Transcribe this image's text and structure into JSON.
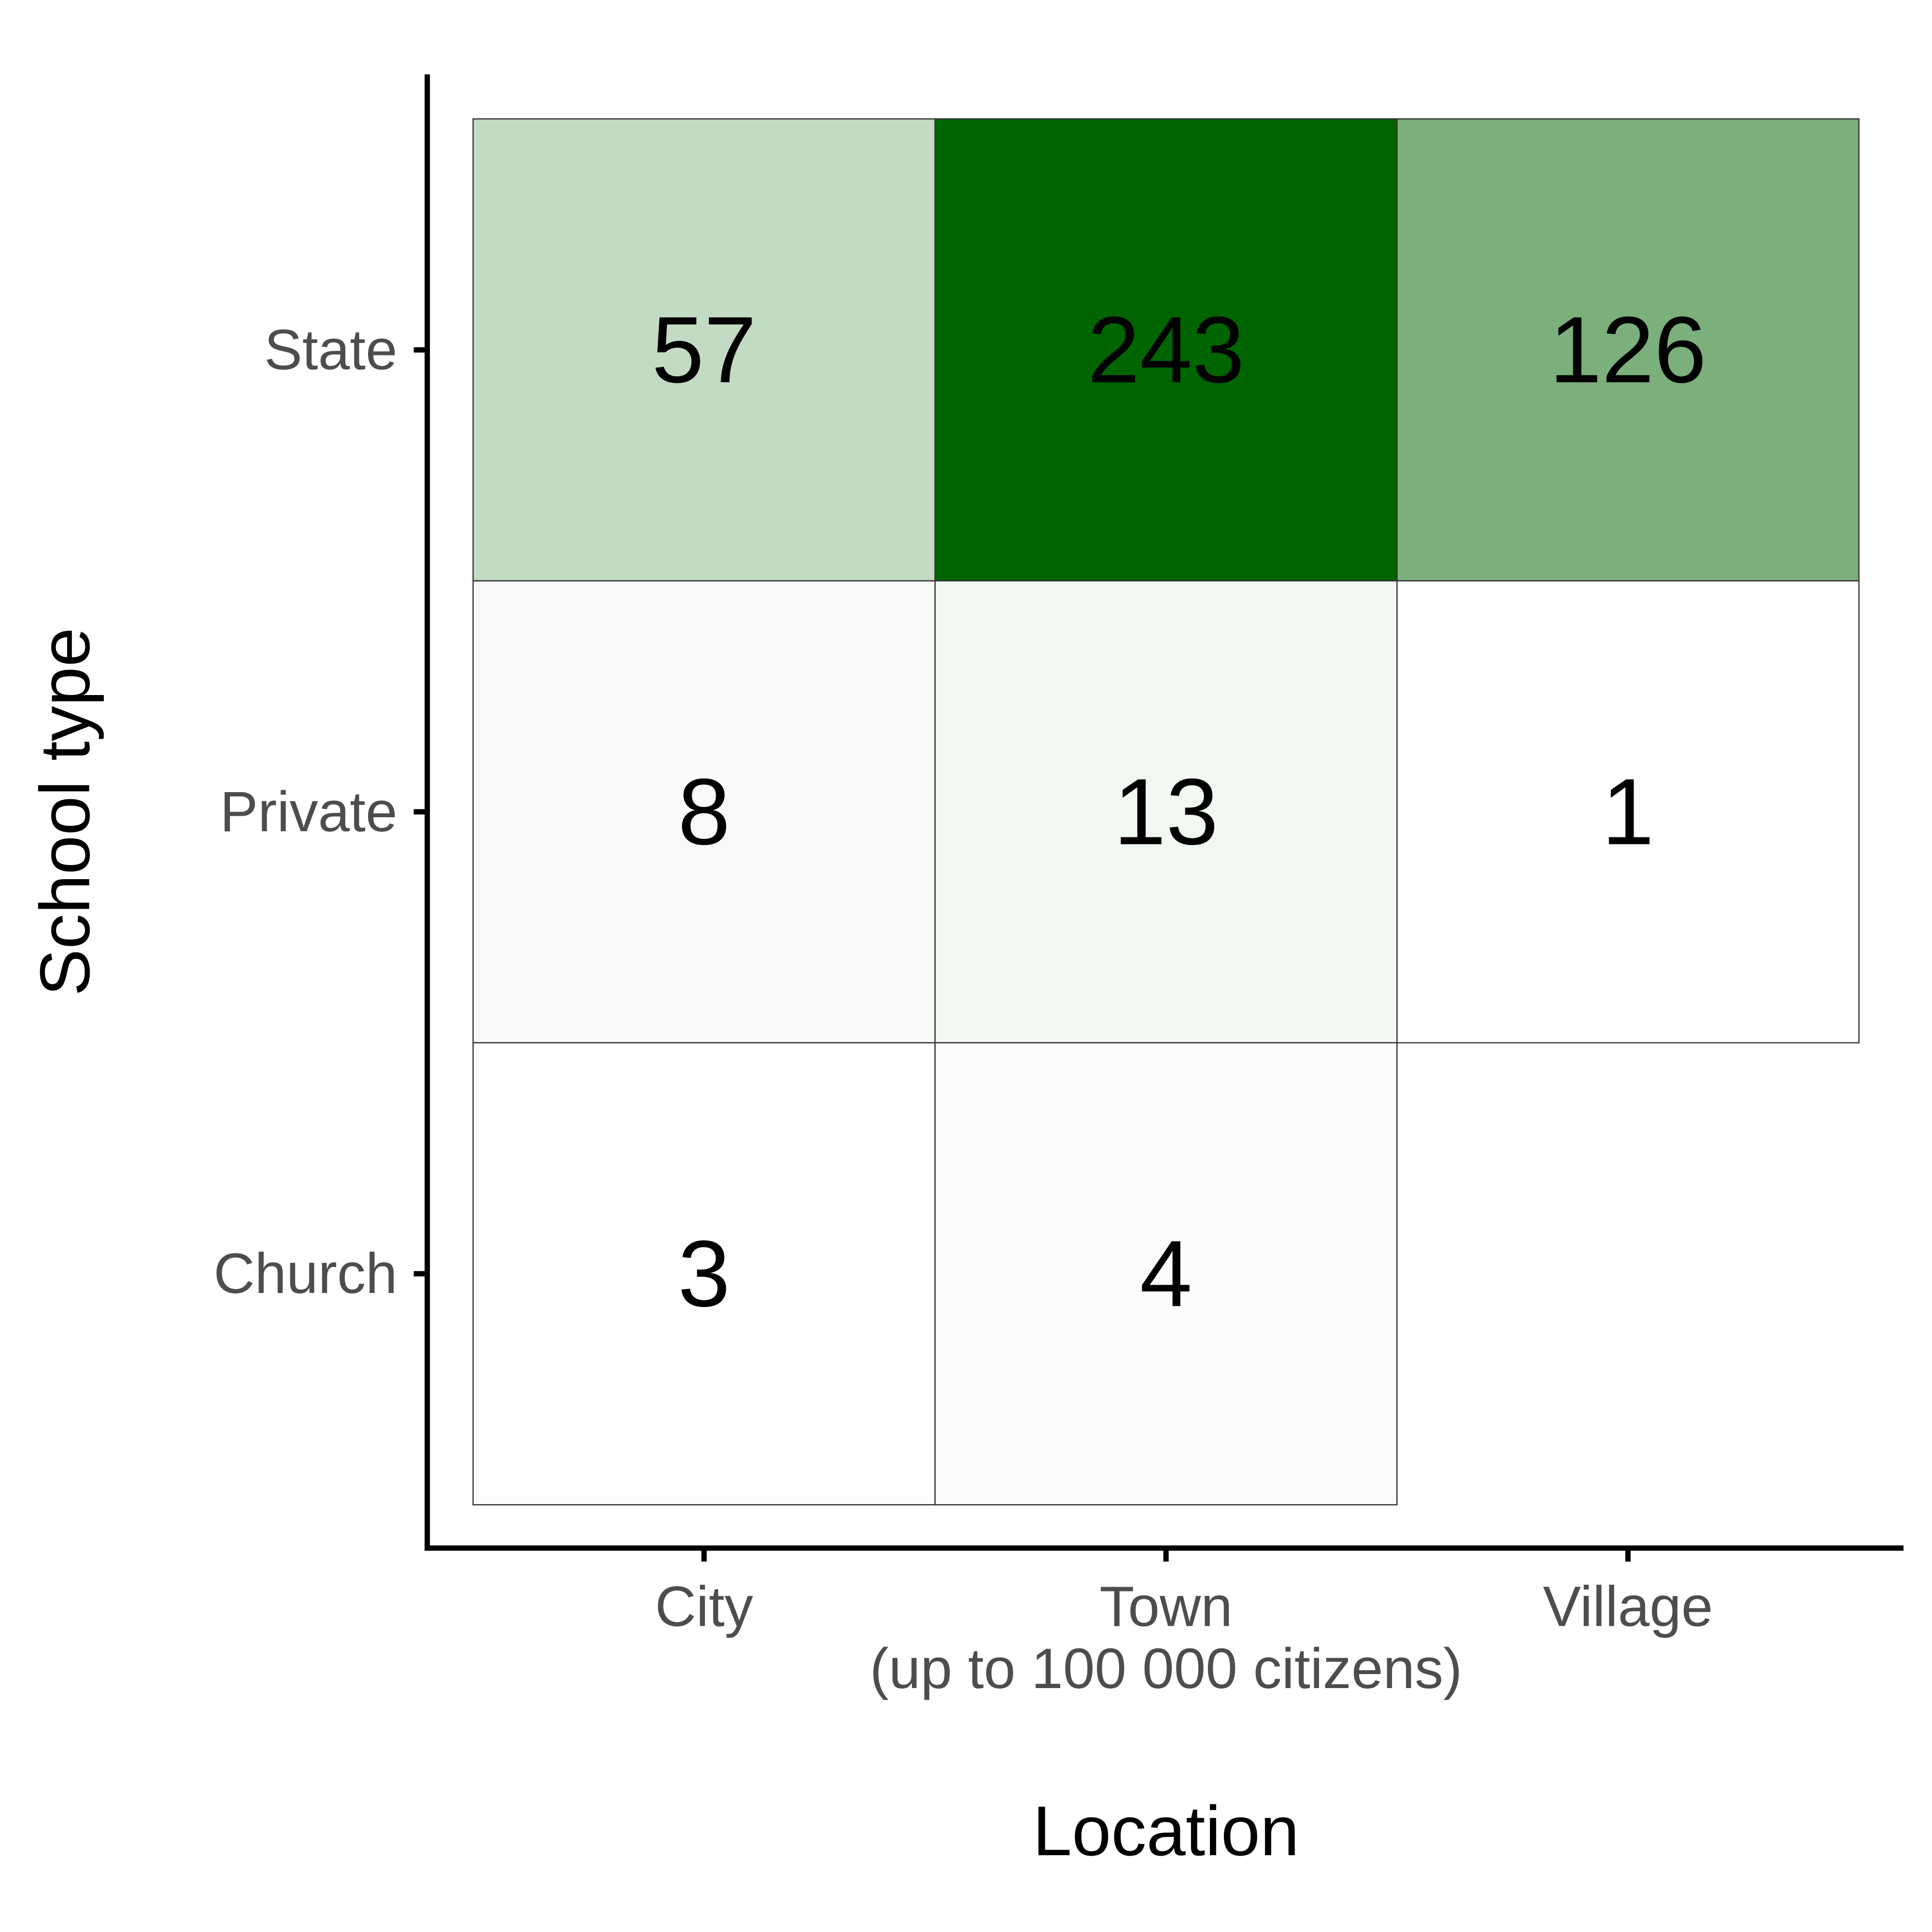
{
  "chart_data": {
    "type": "heatmap",
    "xlabel": "Location",
    "ylabel": "School type",
    "x_categories": [
      {
        "label": "City",
        "sublabel": ""
      },
      {
        "label": "Town",
        "sublabel": "(up to 100 000 citizens)"
      },
      {
        "label": "Village",
        "sublabel": ""
      }
    ],
    "y_categories": [
      "State",
      "Private",
      "Church"
    ],
    "values": [
      [
        57,
        243,
        126
      ],
      [
        8,
        13,
        1
      ],
      [
        3,
        4,
        null
      ]
    ],
    "color_scale": {
      "low": "#ffffff",
      "high": "#006400",
      "min": 0,
      "max": 243
    },
    "cell_border_color": "#333333",
    "axis_color": "#000000",
    "grid": false,
    "legend": "none"
  }
}
